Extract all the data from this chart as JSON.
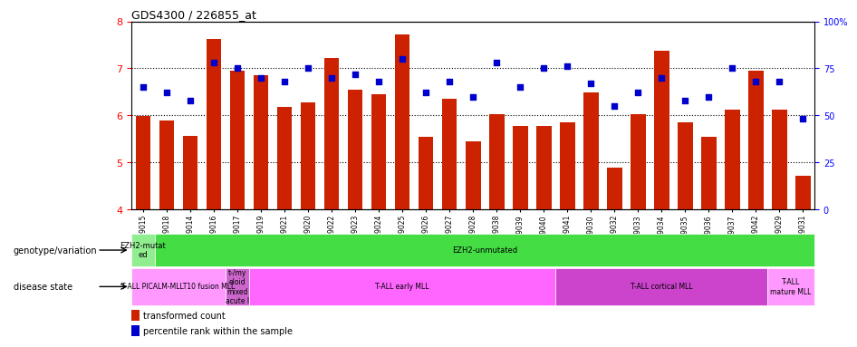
{
  "title": "GDS4300 / 226855_at",
  "samples": [
    "GSM759015",
    "GSM759018",
    "GSM759014",
    "GSM759016",
    "GSM759017",
    "GSM759019",
    "GSM759021",
    "GSM759020",
    "GSM759022",
    "GSM759023",
    "GSM759024",
    "GSM759025",
    "GSM759026",
    "GSM759027",
    "GSM759028",
    "GSM759038",
    "GSM759039",
    "GSM759040",
    "GSM759041",
    "GSM759030",
    "GSM759032",
    "GSM759033",
    "GSM759034",
    "GSM759035",
    "GSM759036",
    "GSM759037",
    "GSM759042",
    "GSM759029",
    "GSM759031"
  ],
  "bar_values": [
    5.98,
    5.88,
    5.56,
    7.62,
    6.95,
    6.85,
    6.18,
    6.28,
    7.22,
    6.55,
    6.45,
    7.72,
    5.55,
    6.35,
    5.45,
    6.02,
    5.78,
    5.78,
    5.85,
    6.48,
    4.88,
    6.02,
    7.38,
    5.85,
    5.55,
    6.12,
    6.95,
    6.12,
    4.72
  ],
  "dot_percentiles": [
    65,
    62,
    58,
    78,
    75,
    70,
    68,
    75,
    70,
    72,
    68,
    80,
    62,
    68,
    60,
    78,
    65,
    75,
    76,
    67,
    55,
    62,
    70,
    58,
    60,
    75,
    68,
    68,
    48
  ],
  "ylim": [
    4,
    8
  ],
  "yticks": [
    4,
    5,
    6,
    7,
    8
  ],
  "right_yticks": [
    0,
    25,
    50,
    75,
    100
  ],
  "bar_color": "#cc2200",
  "dot_color": "#0000cc",
  "plot_bg": "#ffffff",
  "genotype_groups": [
    {
      "label": "EZH2-mutat\ned",
      "start": 0,
      "end": 1,
      "color": "#90ee90"
    },
    {
      "label": "EZH2-unmutated",
      "start": 1,
      "end": 29,
      "color": "#44dd44"
    }
  ],
  "disease_groups": [
    {
      "label": "T-ALL PICALM-MLLT10 fusion MLL",
      "start": 0,
      "end": 4,
      "color": "#ff99ff"
    },
    {
      "label": "t-/my\neloid\nmixed\nacute l",
      "start": 4,
      "end": 5,
      "color": "#cc66cc"
    },
    {
      "label": "T-ALL early MLL",
      "start": 5,
      "end": 18,
      "color": "#ff66ff"
    },
    {
      "label": "T-ALL cortical MLL",
      "start": 18,
      "end": 27,
      "color": "#cc44cc"
    },
    {
      "label": "T-ALL\nmature MLL",
      "start": 27,
      "end": 29,
      "color": "#ff99ff"
    }
  ]
}
